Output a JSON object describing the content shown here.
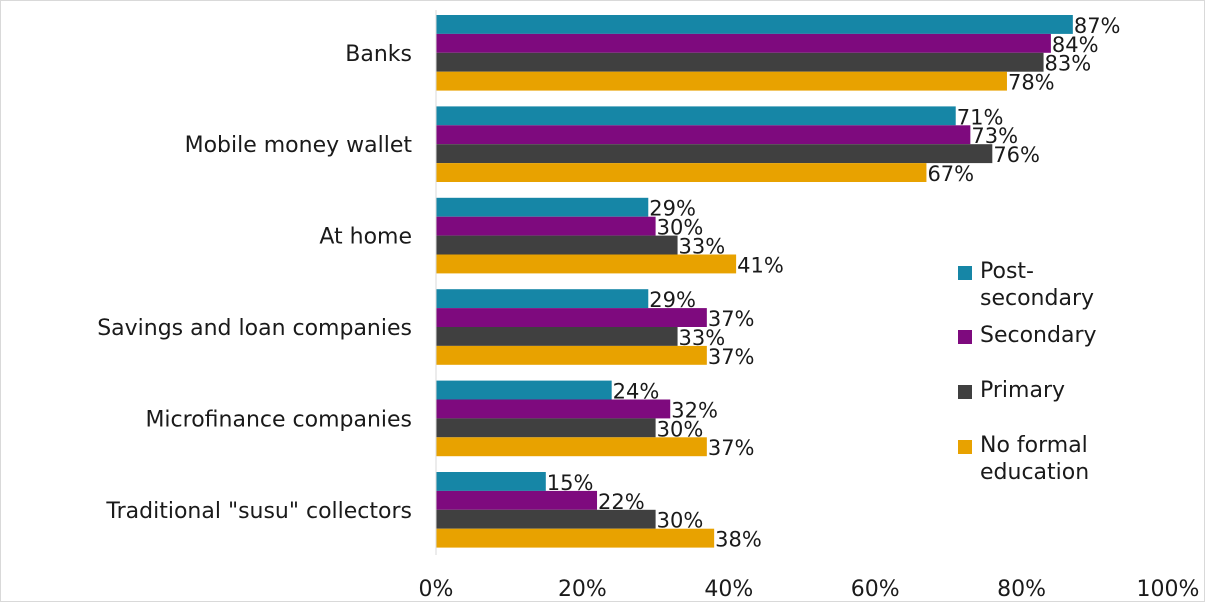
{
  "chart_data": {
    "type": "bar",
    "orientation": "horizontal",
    "categories": [
      "Banks",
      "Mobile money wallet",
      "At home",
      "Savings and loan companies",
      "Microfinance companies",
      "Traditional \"susu\" collectors"
    ],
    "series": [
      {
        "name": "Post-secondary",
        "color": "#1686a6",
        "values": [
          87,
          71,
          29,
          29,
          24,
          15
        ],
        "labels": [
          "87%",
          "71%",
          "29%",
          "29%",
          "24%",
          "15%"
        ]
      },
      {
        "name": "Secondary",
        "color": "#7e0a7e",
        "values": [
          84,
          73,
          30,
          37,
          32,
          22
        ],
        "labels": [
          "84%",
          "73%",
          "30%",
          "37%",
          "32%",
          "22%"
        ]
      },
      {
        "name": "Primary",
        "color": "#404040",
        "values": [
          83,
          76,
          33,
          33,
          30,
          30
        ],
        "labels": [
          "83%",
          "76%",
          "33%",
          "33%",
          "30%",
          "30%"
        ]
      },
      {
        "name": "No formal education",
        "color": "#e8a200",
        "values": [
          78,
          67,
          41,
          37,
          37,
          38
        ],
        "labels": [
          "78%",
          "67%",
          "41%",
          "37%",
          "37%",
          "38%"
        ]
      }
    ],
    "xlim": [
      0,
      100
    ],
    "xticks": [
      0,
      20,
      40,
      60,
      80,
      100
    ],
    "xtick_labels": [
      "0%",
      "20%",
      "40%",
      "60%",
      "80%",
      "100%"
    ],
    "legend": {
      "position": "right",
      "entries": [
        {
          "lines": [
            "Post-",
            "secondary"
          ],
          "color": "#1686a6"
        },
        {
          "lines": [
            "Secondary"
          ],
          "color": "#7e0a7e"
        },
        {
          "lines": [
            "Primary"
          ],
          "color": "#404040"
        },
        {
          "lines": [
            "No formal",
            "education"
          ],
          "color": "#e8a200"
        }
      ]
    },
    "grid": false
  }
}
